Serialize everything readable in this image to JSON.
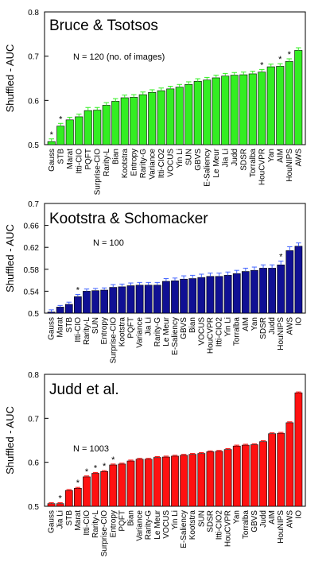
{
  "chart_data": [
    {
      "type": "bar",
      "title": "Bruce & Tsotsos",
      "annotation": "N = 120 (no. of images)",
      "ylabel": "Shuffled - AUC",
      "ylim": [
        0.5,
        0.8
      ],
      "yticks": [
        "0.5",
        "0.6",
        "0.7",
        "0.8"
      ],
      "ytick_values": [
        0.5,
        0.6,
        0.7,
        0.8
      ],
      "bar_color": "#33ee22",
      "error_color": "#33ee22",
      "categories": [
        "Gauss",
        "STB",
        "Marat",
        "Itti-CIO",
        "PQFT",
        "Surprise-CIO",
        "Rarity-L",
        "Bian",
        "Kootstra",
        "Entropy",
        "Rarity-G",
        "Variance",
        "Itti-CIO2",
        "VOCUS",
        "Yin Li",
        "SUN",
        "GBVS",
        "E-Saliency",
        "Le Meur",
        "Jia Li",
        "Judd",
        "SDSR",
        "Torralba",
        "HouCVPR",
        "Yan",
        "AIM",
        "HouNIPS",
        "AWS"
      ],
      "values": [
        0.507,
        0.542,
        0.556,
        0.563,
        0.577,
        0.578,
        0.589,
        0.598,
        0.606,
        0.607,
        0.613,
        0.618,
        0.622,
        0.626,
        0.63,
        0.636,
        0.643,
        0.646,
        0.651,
        0.655,
        0.657,
        0.658,
        0.66,
        0.664,
        0.676,
        0.677,
        0.688,
        0.713
      ],
      "errors": [
        0.006,
        0.006,
        0.006,
        0.006,
        0.007,
        0.006,
        0.006,
        0.006,
        0.006,
        0.006,
        0.006,
        0.006,
        0.006,
        0.006,
        0.006,
        0.006,
        0.006,
        0.006,
        0.006,
        0.006,
        0.006,
        0.006,
        0.006,
        0.006,
        0.006,
        0.006,
        0.006,
        0.006
      ],
      "stars": [
        1,
        2,
        0,
        0,
        0,
        0,
        0,
        0,
        0,
        0,
        0,
        0,
        0,
        0,
        0,
        0,
        0,
        0,
        0,
        0,
        0,
        0,
        0,
        24,
        0,
        25,
        26,
        0
      ]
    },
    {
      "type": "bar",
      "title": "Kootstra & Schomacker",
      "annotation": "N = 100",
      "ylabel": "Shuffled - AUC",
      "ylim": [
        0.5,
        0.7
      ],
      "yticks": [
        "0.5",
        "0.54",
        "0.58",
        "0.62",
        "0.66",
        "0.7"
      ],
      "ytick_values": [
        0.5,
        0.54,
        0.58,
        0.62,
        0.66,
        0.7
      ],
      "bar_color": "#101094",
      "error_color": "#4466ff",
      "categories": [
        "Gauss",
        "Marat",
        "STB",
        "Itti-CIO",
        "Rarity-L",
        "SUN",
        "Entropy",
        "Surprise-CIO",
        "Kootstra",
        "PQFT",
        "Variance",
        "Jia Li",
        "Rarity-G",
        "Le Meur",
        "E-Saliency",
        "GBVS",
        "Bian",
        "VOCUS",
        "HouCVPR",
        "Itti-CIO2",
        "Yin Li",
        "Torralba",
        "AIM",
        "Yan",
        "SDSR",
        "Judd",
        "HouNIPS",
        "AWS",
        "IO"
      ],
      "values": [
        0.502,
        0.511,
        0.516,
        0.53,
        0.54,
        0.541,
        0.542,
        0.547,
        0.548,
        0.55,
        0.551,
        0.551,
        0.551,
        0.558,
        0.559,
        0.562,
        0.563,
        0.565,
        0.567,
        0.567,
        0.569,
        0.572,
        0.576,
        0.578,
        0.582,
        0.582,
        0.588,
        0.614,
        0.622
      ],
      "errors": [
        0.004,
        0.003,
        0.004,
        0.004,
        0.004,
        0.004,
        0.004,
        0.005,
        0.005,
        0.005,
        0.005,
        0.005,
        0.005,
        0.005,
        0.005,
        0.006,
        0.006,
        0.006,
        0.006,
        0.006,
        0.006,
        0.006,
        0.006,
        0.006,
        0.006,
        0.006,
        0.007,
        0.007,
        0.006
      ],
      "stars": [
        0,
        0,
        0,
        3,
        0,
        0,
        0,
        0,
        0,
        0,
        0,
        0,
        0,
        0,
        0,
        0,
        0,
        0,
        0,
        0,
        0,
        0,
        0,
        0,
        0,
        0,
        26,
        0,
        0
      ]
    },
    {
      "type": "bar",
      "title": "Judd et al.",
      "annotation": "N = 1003",
      "ylabel": "Shuffled - AUC",
      "ylim": [
        0.5,
        0.8
      ],
      "yticks": [
        "0.5",
        "0.6",
        "0.7",
        "0.8"
      ],
      "ytick_values": [
        0.5,
        0.6,
        0.7,
        0.8
      ],
      "bar_color": "#ff1111",
      "error_color": "#ff1111",
      "categories": [
        "Gauss",
        "Jia Li",
        "STB",
        "Marat",
        "Itti-CIO",
        "Rarity-L",
        "Surprise-CIO",
        "Entropy",
        "PQFT",
        "Bian",
        "Variance",
        "Rarity-G",
        "Le Meur",
        "VOCUS",
        "Yin Li",
        "E-Saliency",
        "Kootstra",
        "SUN",
        "SDSR",
        "Itti-CIO2",
        "HouCVPR",
        "Yan",
        "Torralba",
        "GBVS",
        "Judd",
        "AIM",
        "HouNIPS",
        "AWS",
        "IO"
      ],
      "values": [
        0.506,
        0.506,
        0.536,
        0.541,
        0.567,
        0.575,
        0.579,
        0.594,
        0.596,
        0.603,
        0.607,
        0.607,
        0.611,
        0.612,
        0.614,
        0.616,
        0.618,
        0.62,
        0.624,
        0.625,
        0.629,
        0.637,
        0.639,
        0.64,
        0.647,
        0.665,
        0.666,
        0.69,
        0.758
      ],
      "errors": [
        0.002,
        0.002,
        0.002,
        0.002,
        0.002,
        0.002,
        0.002,
        0.002,
        0.002,
        0.002,
        0.002,
        0.002,
        0.002,
        0.002,
        0.002,
        0.002,
        0.002,
        0.002,
        0.002,
        0.002,
        0.002,
        0.002,
        0.002,
        0.002,
        0.002,
        0.002,
        0.002,
        0.002,
        0.002
      ],
      "stars": [
        0,
        1,
        0,
        1,
        2,
        2,
        3,
        4,
        0,
        0,
        0,
        0,
        0,
        0,
        0,
        0,
        0,
        0,
        0,
        0,
        0,
        0,
        0,
        0,
        0,
        0,
        0,
        0,
        0
      ]
    }
  ]
}
